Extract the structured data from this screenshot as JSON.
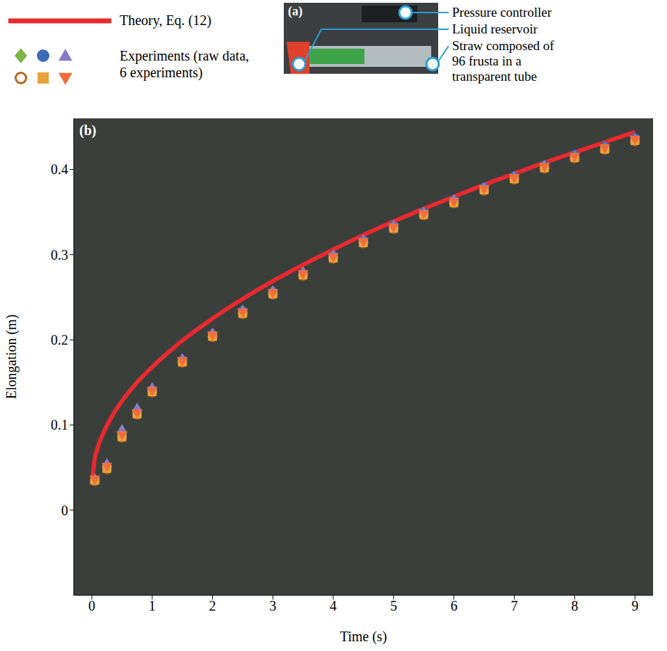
{
  "chart_data": {
    "type": "line",
    "panel_label": "(b)",
    "x_label": "Time (s)",
    "y_label": "Elongation (m)",
    "experiments_label": "Experiments (raw data, 6 experiments)",
    "xlim": [
      -0.3,
      9.3
    ],
    "xticks": [
      0,
      1,
      2,
      3,
      4,
      5,
      6,
      7,
      8,
      9
    ],
    "ylim": [
      -0.1,
      0.46
    ],
    "yticks": [
      0,
      0.1,
      0.2,
      0.3,
      0.4
    ],
    "grid": false,
    "legend": "top left",
    "series": [
      {
        "name": "Theory, Eq. (12)",
        "type": "line",
        "color": "#e8292e",
        "line_style": "solid",
        "x": [
          0,
          0.05,
          0.1,
          0.2,
          0.35,
          0.5,
          0.75,
          1,
          1.5,
          2,
          2.5,
          3,
          3.5,
          4,
          4.5,
          5,
          5.5,
          6,
          6.5,
          7,
          7.5,
          8,
          8.5,
          9
        ],
        "values": [
          0.03,
          0.061,
          0.074,
          0.092,
          0.112,
          0.128,
          0.15,
          0.168,
          0.199,
          0.225,
          0.248,
          0.269,
          0.288,
          0.306,
          0.323,
          0.339,
          0.354,
          0.368,
          0.382,
          0.395,
          0.408,
          0.42,
          0.432,
          0.444
        ]
      },
      {
        "type": "scatter",
        "color": "#7cb342",
        "marker": "diamond",
        "x": [
          0.05,
          0.25,
          0.5,
          0.75,
          1,
          1.5,
          2,
          2.5,
          3,
          3.5,
          4,
          4.5,
          5,
          5.5,
          6,
          6.5,
          7,
          7.5,
          8,
          8.5,
          9
        ],
        "values": [
          0.036,
          0.052,
          0.09,
          0.117,
          0.142,
          0.177,
          0.207,
          0.233,
          0.257,
          0.279,
          0.298,
          0.316,
          0.333,
          0.349,
          0.363,
          0.378,
          0.391,
          0.404,
          0.416,
          0.426,
          0.436
        ]
      },
      {
        "type": "scatter",
        "color": "#3d6db5",
        "marker": "circle",
        "x": [
          0.05,
          0.25,
          0.5,
          0.75,
          1,
          1.5,
          2,
          2.5,
          3,
          3.5,
          4,
          4.5,
          5,
          5.5,
          6,
          6.5,
          7,
          7.5,
          8,
          8.5,
          9
        ],
        "values": [
          0.035,
          0.05,
          0.087,
          0.116,
          0.141,
          0.176,
          0.206,
          0.234,
          0.256,
          0.278,
          0.299,
          0.317,
          0.334,
          0.35,
          0.364,
          0.379,
          0.392,
          0.405,
          0.417,
          0.427,
          0.437
        ]
      },
      {
        "type": "scatter",
        "color": "#8a7cc4",
        "marker": "triangle",
        "x": [
          0.05,
          0.25,
          0.5,
          0.75,
          1,
          1.5,
          2,
          2.5,
          3,
          3.5,
          4,
          4.5,
          5,
          5.5,
          6,
          6.5,
          7,
          7.5,
          8,
          8.5,
          9
        ],
        "values": [
          0.037,
          0.055,
          0.095,
          0.12,
          0.144,
          0.178,
          0.208,
          0.235,
          0.258,
          0.28,
          0.3,
          0.318,
          0.335,
          0.35,
          0.365,
          0.379,
          0.392,
          0.405,
          0.416,
          0.426,
          0.436
        ]
      },
      {
        "type": "scatter",
        "color": "#b5651d",
        "marker": "open_circle",
        "x": [
          0.05,
          0.25,
          0.5,
          0.75,
          1,
          1.5,
          2,
          2.5,
          3,
          3.5,
          4,
          4.5,
          5,
          5.5,
          6,
          6.5,
          7,
          7.5,
          8,
          8.5,
          9
        ],
        "values": [
          0.034,
          0.048,
          0.085,
          0.112,
          0.138,
          0.173,
          0.203,
          0.23,
          0.253,
          0.275,
          0.295,
          0.313,
          0.33,
          0.346,
          0.36,
          0.375,
          0.388,
          0.401,
          0.413,
          0.423,
          0.433
        ]
      },
      {
        "type": "scatter",
        "color": "#e8a33a",
        "marker": "square",
        "x": [
          0.05,
          0.25,
          0.5,
          0.75,
          1,
          1.5,
          2,
          2.5,
          3,
          3.5,
          4,
          4.5,
          5,
          5.5,
          6,
          6.5,
          7,
          7.5,
          8,
          8.5,
          9
        ],
        "values": [
          0.035,
          0.049,
          0.086,
          0.113,
          0.139,
          0.174,
          0.204,
          0.231,
          0.254,
          0.276,
          0.296,
          0.314,
          0.331,
          0.347,
          0.361,
          0.376,
          0.389,
          0.402,
          0.414,
          0.424,
          0.434
        ]
      },
      {
        "type": "scatter",
        "color": "#f26d3d",
        "marker": "triangle_down",
        "x": [
          0.05,
          0.25,
          0.5,
          0.75,
          1,
          1.5,
          2,
          2.5,
          3,
          3.5,
          4,
          4.5,
          5,
          5.5,
          6,
          6.5,
          7,
          7.5,
          8,
          8.5,
          9
        ],
        "values": [
          0.036,
          0.051,
          0.088,
          0.114,
          0.14,
          0.175,
          0.205,
          0.232,
          0.255,
          0.277,
          0.297,
          0.315,
          0.332,
          0.348,
          0.362,
          0.377,
          0.39,
          0.403,
          0.415,
          0.425,
          0.435
        ]
      }
    ]
  },
  "panel_a": {
    "panel_label": "(a)",
    "annotations": [
      "Pressure controller",
      "Liquid reservoir",
      "Straw composed of 96 frusta in a transparent tube"
    ]
  }
}
